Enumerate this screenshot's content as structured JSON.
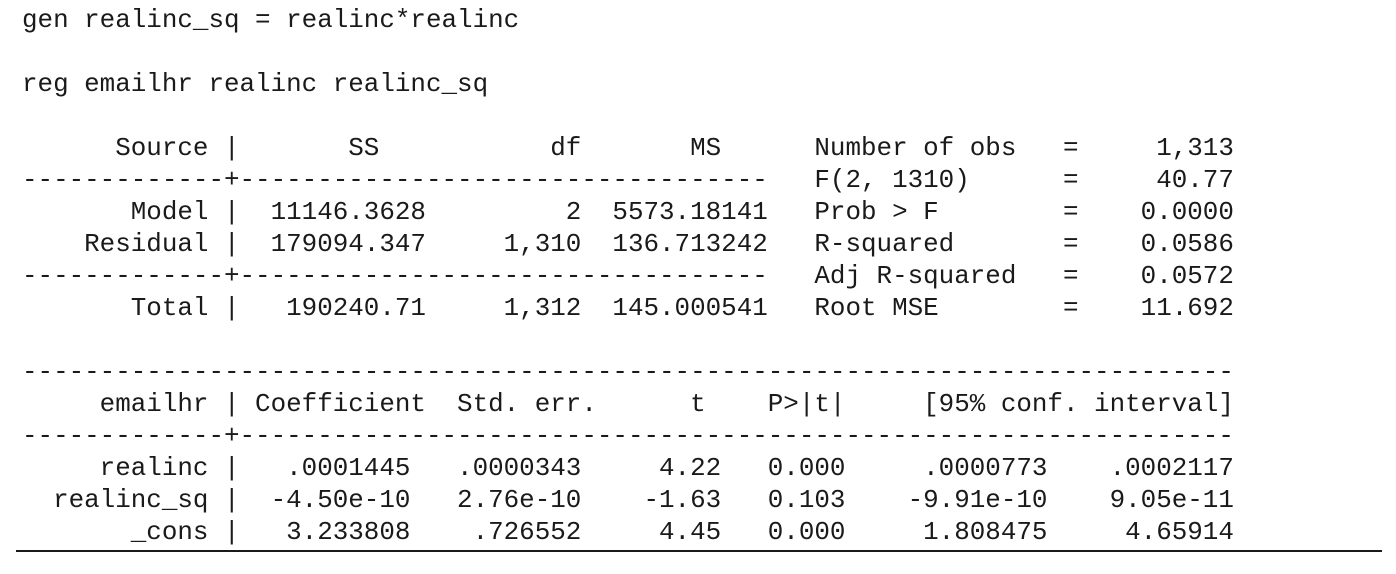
{
  "commands": {
    "gen_command": "gen realinc_sq = realinc*realinc",
    "reg_command": "reg emailhr realinc realinc_sq"
  },
  "anova_table": {
    "header": "      Source |       SS           df       MS      Number of obs   =     1,313",
    "separator": "-------------+----------------------------------   F(2, 1310)      =     40.77",
    "rows": [
      "       Model |  11146.3628         2  5573.18141   Prob > F        =    0.0000",
      "    Residual |  179094.347     1,310  136.713242   R-squared       =    0.0586"
    ],
    "separator2": "-------------+----------------------------------   Adj R-squared   =    0.0572",
    "total": "       Total |   190240.71     1,312  145.000541   Root MSE        =    11.692"
  },
  "coef_table": {
    "top_rule": "------------------------------------------------------------------------------",
    "header": "     emailhr | Coefficient  Std. err.      t    P>|t|     [95% conf. interval]",
    "separator": "-------------+----------------------------------------------------------------",
    "rows": [
      "     realinc |   .0001445   .0000343     4.22   0.000     .0000773    .0002117",
      "  realinc_sq |  -4.50e-10   2.76e-10    -1.63   0.103    -9.91e-10    9.05e-11",
      "       _cons |   3.233808    .726552     4.45   0.000     1.808475     4.65914"
    ]
  }
}
